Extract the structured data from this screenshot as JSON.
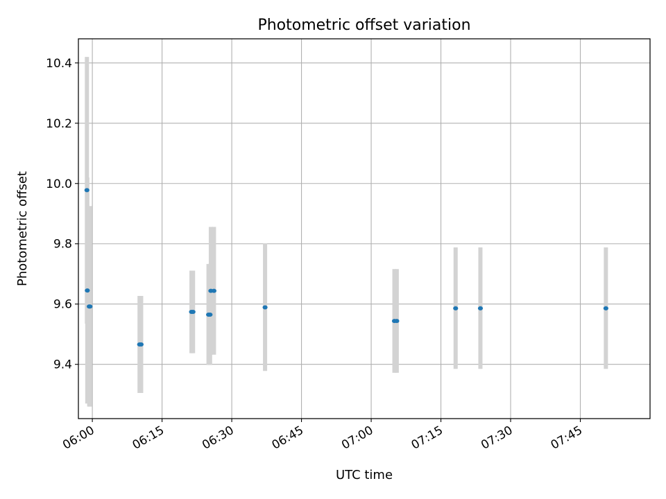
{
  "chart_data": {
    "type": "scatter",
    "title": "Photometric offset variation",
    "xlabel": "UTC time",
    "ylabel": "Photometric offset",
    "x_is_time": true,
    "xlim": [
      "05:57",
      "08:00"
    ],
    "ylim": [
      9.22,
      10.48
    ],
    "xticks": [
      "06:00",
      "06:15",
      "06:30",
      "06:45",
      "07:00",
      "07:15",
      "07:30",
      "07:45"
    ],
    "yticks": [
      9.4,
      9.6,
      9.8,
      10.0,
      10.2,
      10.4
    ],
    "grid": true,
    "marker_color": "#1f77b4",
    "errorbar_color": "#d3d3d3",
    "points": [
      {
        "time": "05:58:50",
        "y": 9.978,
        "err_low": 9.535,
        "err_high": 10.42
      },
      {
        "time": "05:58:55",
        "y": 9.645,
        "err_low": 9.27,
        "err_high": 10.02
      },
      {
        "time": "05:59:20",
        "y": 9.592,
        "err_low": 9.26,
        "err_high": 9.925
      },
      {
        "time": "05:59:30",
        "y": 9.592,
        "err_low": 9.26,
        "err_high": 9.925
      },
      {
        "time": "06:10:10",
        "y": 9.466,
        "err_low": 9.305,
        "err_high": 9.627
      },
      {
        "time": "06:10:30",
        "y": 9.466,
        "err_low": 9.305,
        "err_high": 9.627
      },
      {
        "time": "06:21:20",
        "y": 9.574,
        "err_low": 9.437,
        "err_high": 9.711
      },
      {
        "time": "06:21:40",
        "y": 9.574,
        "err_low": 9.437,
        "err_high": 9.711
      },
      {
        "time": "06:25:00",
        "y": 9.565,
        "err_low": 9.398,
        "err_high": 9.733
      },
      {
        "time": "06:25:20",
        "y": 9.565,
        "err_low": 9.398,
        "err_high": 9.733
      },
      {
        "time": "06:25:30",
        "y": 9.644,
        "err_low": 9.432,
        "err_high": 9.856
      },
      {
        "time": "06:26:10",
        "y": 9.644,
        "err_low": 9.432,
        "err_high": 9.856
      },
      {
        "time": "06:37:10",
        "y": 9.589,
        "err_low": 9.378,
        "err_high": 9.801
      },
      {
        "time": "07:05:00",
        "y": 9.544,
        "err_low": 9.372,
        "err_high": 9.716
      },
      {
        "time": "07:05:30",
        "y": 9.544,
        "err_low": 9.372,
        "err_high": 9.716
      },
      {
        "time": "07:18:10",
        "y": 9.586,
        "err_low": 9.385,
        "err_high": 9.788
      },
      {
        "time": "07:23:30",
        "y": 9.586,
        "err_low": 9.385,
        "err_high": 9.788
      },
      {
        "time": "07:50:30",
        "y": 9.586,
        "err_low": 9.385,
        "err_high": 9.788
      }
    ]
  }
}
